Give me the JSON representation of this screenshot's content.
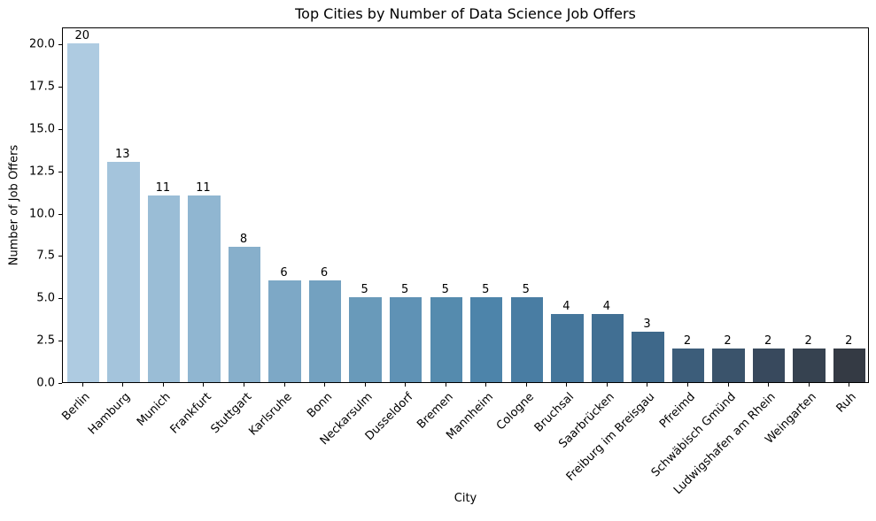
{
  "title": "Top Cities by Number of Data Science Job Offers",
  "chart_data": {
    "type": "bar",
    "title": "Top Cities by Number of Data Science Job Offers",
    "xlabel": "City",
    "ylabel": "Number of Job Offers",
    "categories": [
      "Berlin",
      "Hamburg",
      "Munich",
      "Frankfurt",
      "Stuttgart",
      "Karlsruhe",
      "Bonn",
      "Neckarsulm",
      "Dusseldorf",
      "Bremen",
      "Mannheim",
      "Cologne",
      "Bruchsal",
      "Saarbrücken",
      "Freiburg im Breisgau",
      "Pfreimd",
      "Schwäbisch Gmünd",
      "Ludwigshafen am Rhein",
      "Weingarten",
      "Ruh"
    ],
    "values": [
      20,
      13,
      11,
      11,
      8,
      6,
      6,
      5,
      5,
      5,
      5,
      5,
      4,
      4,
      3,
      2,
      2,
      2,
      2,
      2
    ],
    "bar_value_labels": [
      "20",
      "13",
      "11",
      "11",
      "8",
      "6",
      "6",
      "5",
      "5",
      "5",
      "5",
      "5",
      "4",
      "4",
      "3",
      "2",
      "2",
      "2",
      "2",
      "2"
    ],
    "bar_colors": [
      "#aecbe1",
      "#a4c4dc",
      "#9abdd6",
      "#90b6d1",
      "#87afcb",
      "#7da8c6",
      "#73a1c0",
      "#699aba",
      "#5f92b5",
      "#558bae",
      "#4d84aa",
      "#497da3",
      "#45769b",
      "#416f93",
      "#3e688a",
      "#3c5d7a",
      "#3a536b",
      "#38495d",
      "#364250",
      "#343a44"
    ],
    "yticks": [
      "0.0",
      "2.5",
      "5.0",
      "7.5",
      "10.0",
      "12.5",
      "15.0",
      "17.5",
      "20.0"
    ],
    "ytick_values": [
      0,
      2.5,
      5,
      7.5,
      10,
      12.5,
      15,
      17.5,
      20
    ],
    "ylim": [
      0,
      21
    ],
    "x_label_rotation_deg": 45,
    "grid": false,
    "legend_position": "none",
    "background_color": "#ffffff",
    "spine_color": "#000000",
    "text_color": "#000000"
  }
}
